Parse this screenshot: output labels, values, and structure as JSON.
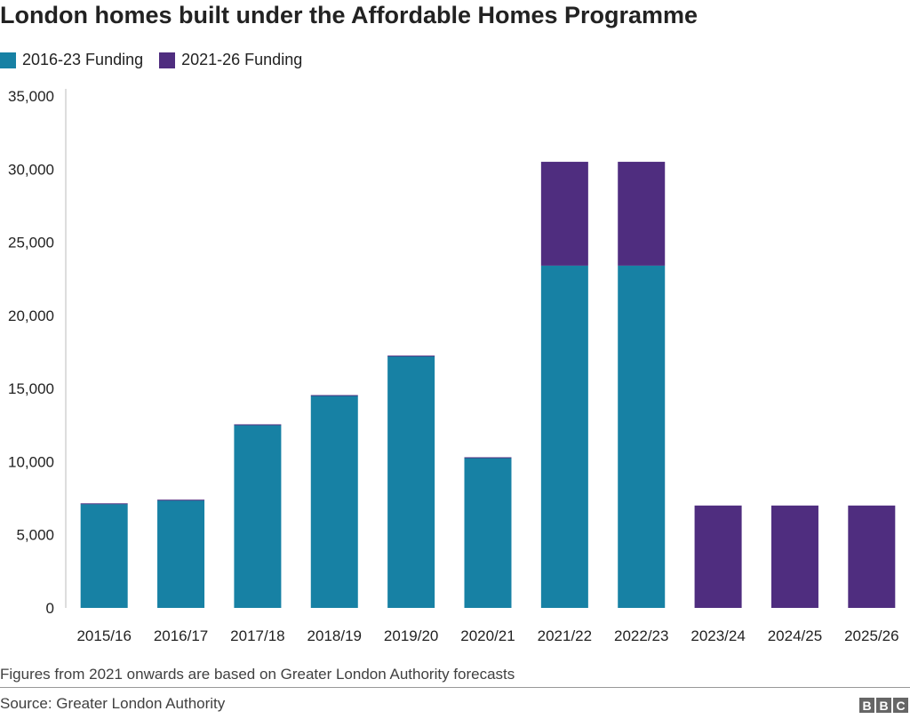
{
  "chart_data": {
    "type": "bar",
    "stacked": true,
    "title": "London homes built under the Affordable Homes Programme",
    "xlabel": "",
    "ylabel": "",
    "ylim": [
      0,
      35000
    ],
    "yticks": [
      "0",
      "5,000",
      "10,000",
      "15,000",
      "20,000",
      "25,000",
      "30,000",
      "35,000"
    ],
    "ytick_values": [
      0,
      5000,
      10000,
      15000,
      20000,
      25000,
      30000,
      35000
    ],
    "grid": false,
    "legend_position": "top-left",
    "categories": [
      "2015/16",
      "2016/17",
      "2017/18",
      "2018/19",
      "2019/20",
      "2020/21",
      "2021/22",
      "2022/23",
      "2023/24",
      "2024/25",
      "2025/26"
    ],
    "series": [
      {
        "name": "2016-23 Funding",
        "color": "#1781a4",
        "values": [
          7100,
          7350,
          12500,
          14500,
          17200,
          10250,
          23400,
          23400,
          0,
          0,
          0
        ]
      },
      {
        "name": "2021-26 Funding",
        "color": "#4f2d7f",
        "values": [
          50,
          50,
          50,
          50,
          50,
          50,
          7100,
          7100,
          7000,
          7000,
          7000
        ]
      }
    ]
  },
  "footer": {
    "note": "Figures from 2021 onwards are based on Greater London Authority forecasts",
    "source": "Source: Greater London Authority",
    "logo": "BBC"
  }
}
